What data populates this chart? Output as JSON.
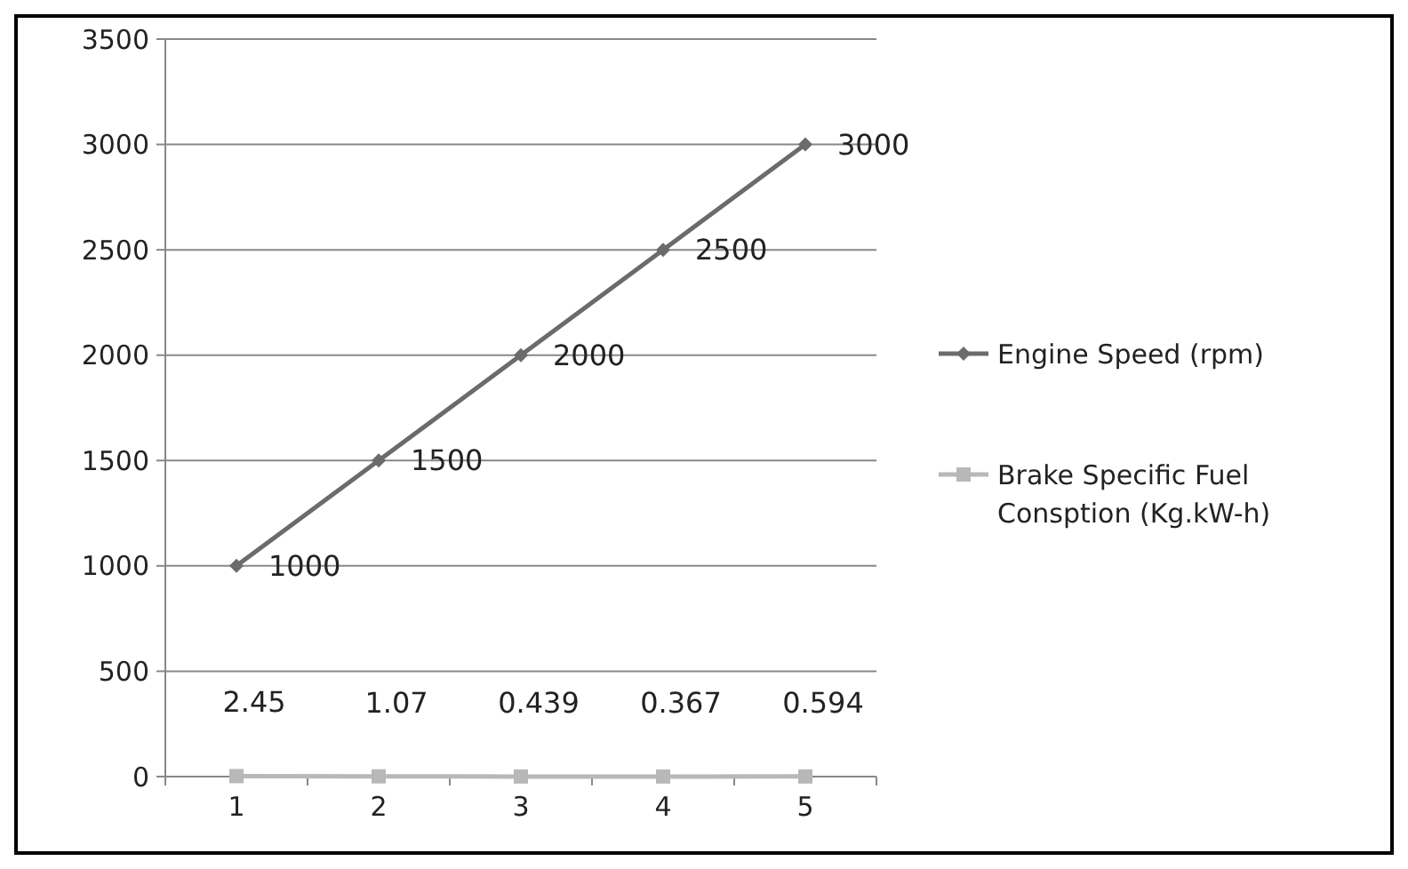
{
  "chart_data": {
    "type": "line",
    "categories": [
      "1",
      "2",
      "3",
      "4",
      "5"
    ],
    "series": [
      {
        "name": "Engine Speed (rpm)",
        "color": "#6b6b6b",
        "marker": "diamond",
        "values": [
          1000,
          1500,
          2000,
          2500,
          3000
        ]
      },
      {
        "name": "Brake Specific Fuel Consption (Kg.kW-h)",
        "color": "#b8b8b8",
        "marker": "square",
        "values": [
          2.45,
          1.07,
          0.439,
          0.367,
          0.594
        ]
      }
    ],
    "ylim": [
      0,
      3500
    ],
    "yticks": [
      0,
      500,
      1000,
      1500,
      2000,
      2500,
      3000,
      3500
    ],
    "grid": "y",
    "legend": "right",
    "data_labels": true,
    "line_style": "solid"
  }
}
